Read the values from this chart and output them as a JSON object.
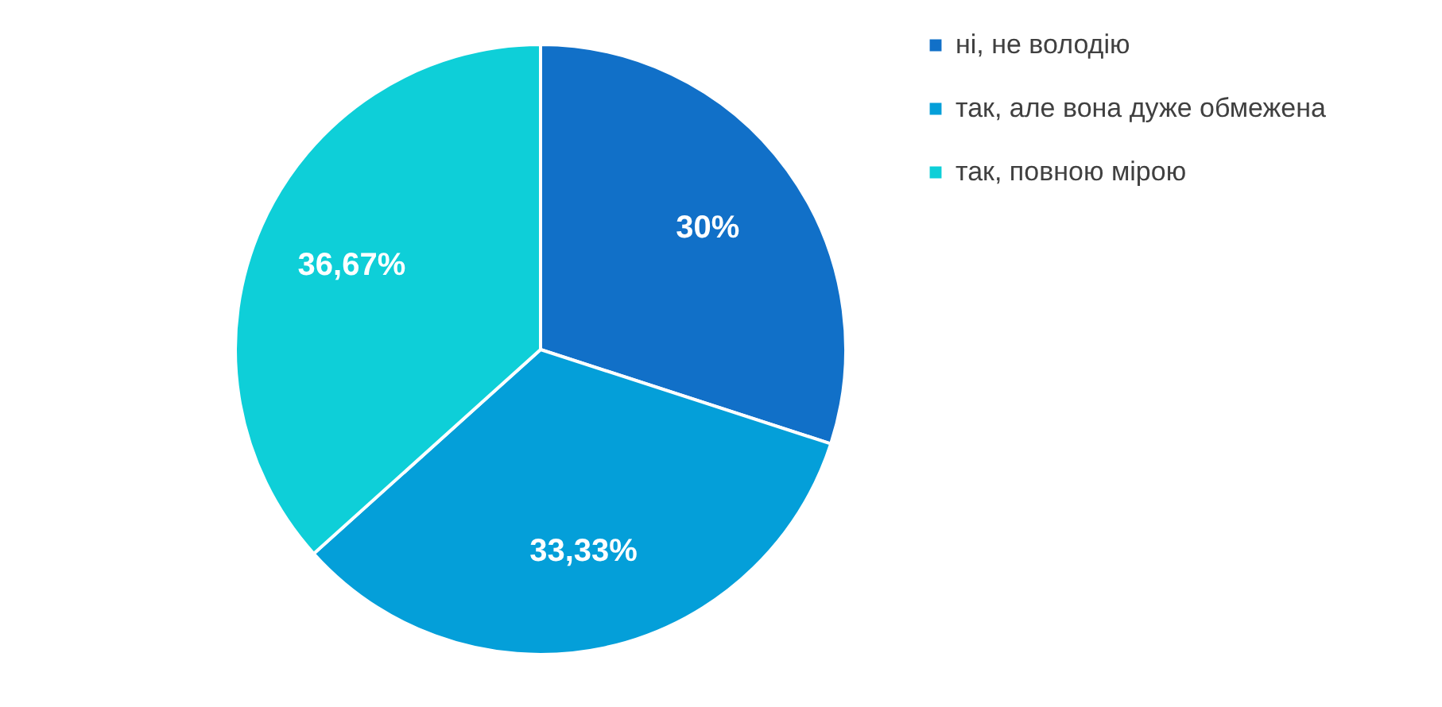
{
  "chart_data": {
    "type": "pie",
    "categories": [
      "ні, не володію",
      "так, але вона дуже обмежена",
      "так, повною мірою"
    ],
    "values": [
      30,
      33.33,
      36.67
    ],
    "colors": [
      "#1170c8",
      "#049fd9",
      "#0ecfd8"
    ],
    "value_labels": [
      "30%",
      "33,33%",
      "36,67%"
    ],
    "legend": "right"
  }
}
